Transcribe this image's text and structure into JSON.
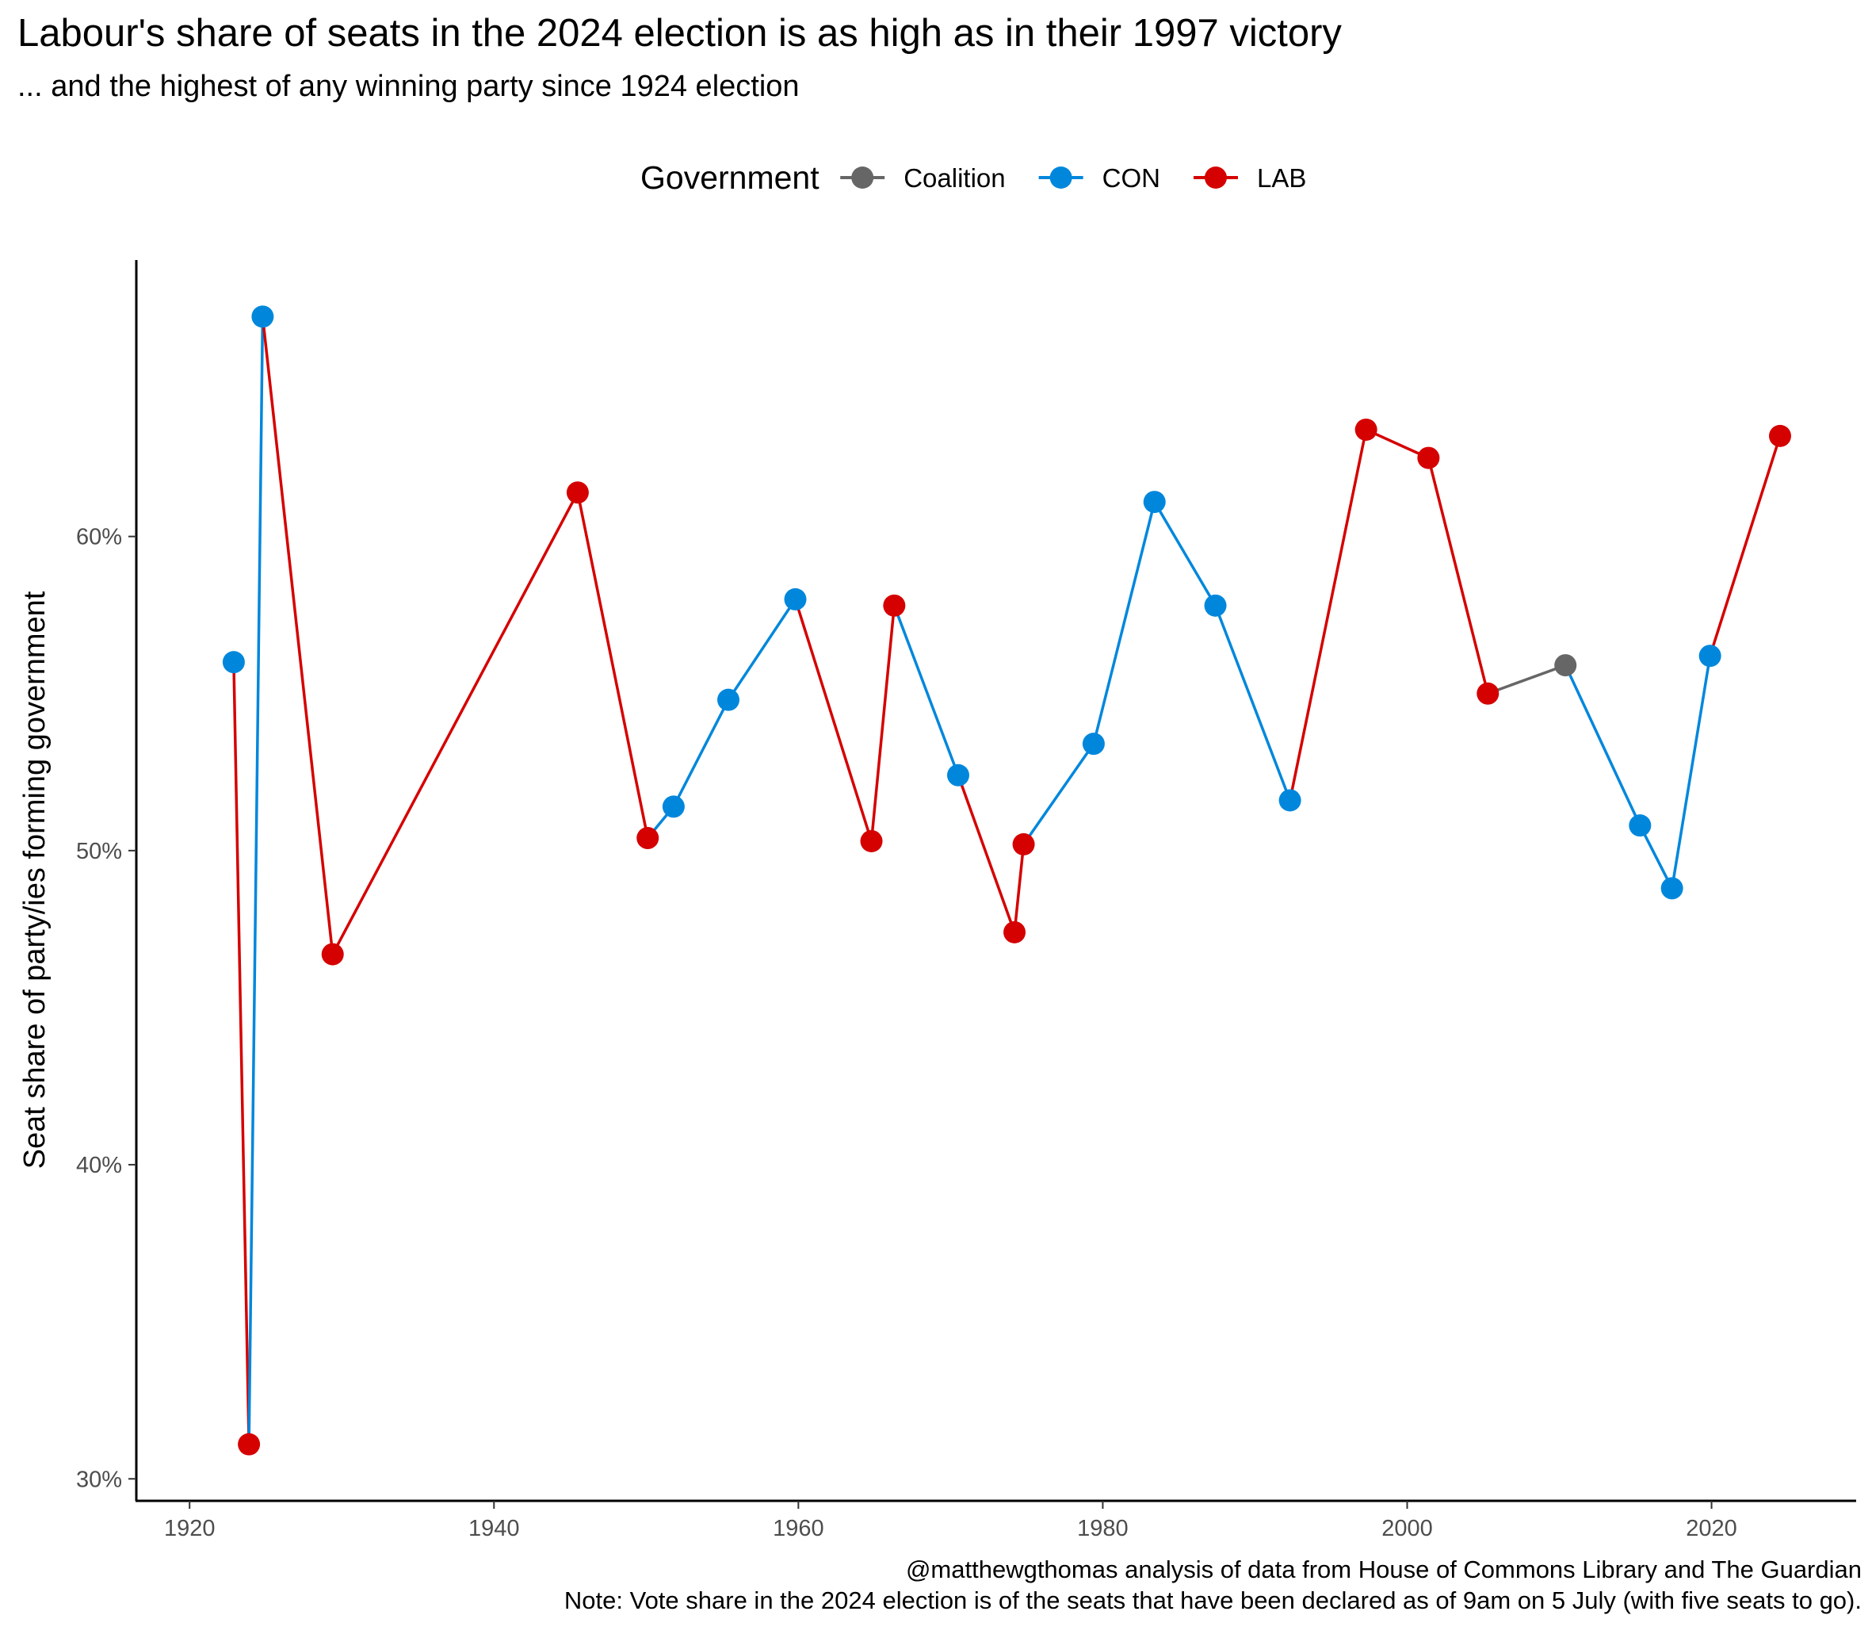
{
  "chart_data": {
    "type": "line",
    "title": "Labour's share of seats in the 2024 election is as high as in their 1997 victory",
    "subtitle": "... and the highest of any winning party since 1924 election",
    "xlabel": "",
    "ylabel": "Seat share of party/ies forming government",
    "xlim": [
      1916.5,
      2029.5
    ],
    "ylim": [
      29.3,
      68.8
    ],
    "x_ticks": [
      1920,
      1940,
      1960,
      1980,
      2000,
      2020
    ],
    "y_ticks": [
      30,
      40,
      50,
      60
    ],
    "y_tick_suffix": "%",
    "grid": false,
    "legend": {
      "title": "Government",
      "position": "top",
      "entries": [
        {
          "name": "Coalition",
          "color": "#666666"
        },
        {
          "name": "CON",
          "color": "#0087DC"
        },
        {
          "name": "LAB",
          "color": "#D50000"
        }
      ]
    },
    "points": [
      {
        "year": 1922.9,
        "share": 56.0,
        "party": "CON"
      },
      {
        "year": 1923.9,
        "share": 31.1,
        "party": "LAB"
      },
      {
        "year": 1924.8,
        "share": 67.0,
        "party": "CON"
      },
      {
        "year": 1929.4,
        "share": 46.7,
        "party": "LAB"
      },
      {
        "year": 1945.5,
        "share": 61.4,
        "party": "LAB"
      },
      {
        "year": 1950.1,
        "share": 50.4,
        "party": "LAB"
      },
      {
        "year": 1951.8,
        "share": 51.4,
        "party": "CON"
      },
      {
        "year": 1955.4,
        "share": 54.8,
        "party": "CON"
      },
      {
        "year": 1959.8,
        "share": 58.0,
        "party": "CON"
      },
      {
        "year": 1964.8,
        "share": 50.3,
        "party": "LAB"
      },
      {
        "year": 1966.3,
        "share": 57.8,
        "party": "LAB"
      },
      {
        "year": 1970.5,
        "share": 52.4,
        "party": "CON"
      },
      {
        "year": 1974.2,
        "share": 47.4,
        "party": "LAB"
      },
      {
        "year": 1974.8,
        "share": 50.2,
        "party": "LAB"
      },
      {
        "year": 1979.4,
        "share": 53.4,
        "party": "CON"
      },
      {
        "year": 1983.4,
        "share": 61.1,
        "party": "CON"
      },
      {
        "year": 1987.4,
        "share": 57.8,
        "party": "CON"
      },
      {
        "year": 1992.3,
        "share": 51.6,
        "party": "CON"
      },
      {
        "year": 1997.3,
        "share": 63.4,
        "party": "LAB"
      },
      {
        "year": 2001.4,
        "share": 62.5,
        "party": "LAB"
      },
      {
        "year": 2005.3,
        "share": 55.0,
        "party": "LAB"
      },
      {
        "year": 2010.4,
        "share": 55.9,
        "party": "Coalition"
      },
      {
        "year": 2015.3,
        "share": 50.8,
        "party": "CON"
      },
      {
        "year": 2017.4,
        "share": 48.8,
        "party": "CON"
      },
      {
        "year": 2019.9,
        "share": 56.2,
        "party": "CON"
      },
      {
        "year": 2024.5,
        "share": 63.2,
        "party": "LAB"
      }
    ]
  },
  "caption": {
    "line1": "@matthewgthomas analysis of data from House of Commons Library and The Guardian",
    "line2": "Note: Vote share in the 2024 election is of the seats that have been declared as of 9am on 5 July (with five seats to go)."
  }
}
